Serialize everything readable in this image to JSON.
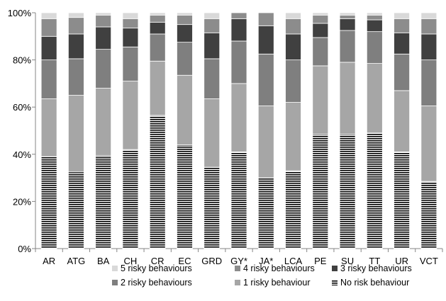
{
  "chart_data": {
    "type": "bar",
    "stacked": true,
    "categories": [
      "AR",
      "ATG",
      "BA",
      "CH",
      "CR",
      "EC",
      "GRD",
      "GY*",
      "JA*",
      "LCA",
      "PE",
      "SU",
      "TT",
      "UR",
      "VCT"
    ],
    "ylim": [
      0,
      100
    ],
    "yticks": [
      "0%",
      "20%",
      "40%",
      "60%",
      "80%",
      "100%"
    ],
    "legend_position": "bottom",
    "series": [
      {
        "name": "No risk behaviour",
        "color": "#000000",
        "pattern": "horizontal-stripes",
        "values": [
          39,
          32.5,
          39.5,
          42,
          56.5,
          44,
          34.5,
          41,
          30,
          33,
          48.5,
          48.5,
          49,
          41,
          28.5
        ]
      },
      {
        "name": "1 risky behaviour",
        "color": "#a6a6a6",
        "values": [
          24.5,
          32.5,
          28.5,
          29,
          23,
          29.5,
          29,
          29,
          30.5,
          29,
          29,
          30.5,
          29.5,
          26,
          32
        ]
      },
      {
        "name": "2 risky behaviours",
        "color": "#7f7f7f",
        "values": [
          16.5,
          15.5,
          16.5,
          14.5,
          11.5,
          14,
          17,
          18,
          22,
          18,
          12,
          13.5,
          13.5,
          15.5,
          19.5
        ]
      },
      {
        "name": "3 risky behaviours",
        "color": "#404040",
        "values": [
          10,
          10.5,
          9.5,
          8,
          5,
          7.5,
          11,
          9.5,
          12,
          11,
          6,
          5,
          5,
          9,
          11
        ]
      },
      {
        "name": "4 risky behaviours",
        "color": "#8c8c8c",
        "values": [
          7.5,
          7,
          5,
          4,
          3,
          4,
          6,
          2.5,
          5.5,
          6.5,
          3.5,
          1.5,
          2,
          6,
          6.5
        ]
      },
      {
        "name": "5 risky behaviours",
        "color": "#d9d9d9",
        "values": [
          2.5,
          2,
          1,
          2.5,
          1,
          1,
          2.5,
          0,
          0,
          2.5,
          1,
          1,
          1,
          2.5,
          2.5
        ]
      }
    ],
    "legend_order": [
      "5 risky behaviours",
      "4 risky behaviours",
      "3 risky behaviours",
      "2 risky behaviours",
      "1 risky behaviour",
      "No risk behaviour"
    ]
  }
}
